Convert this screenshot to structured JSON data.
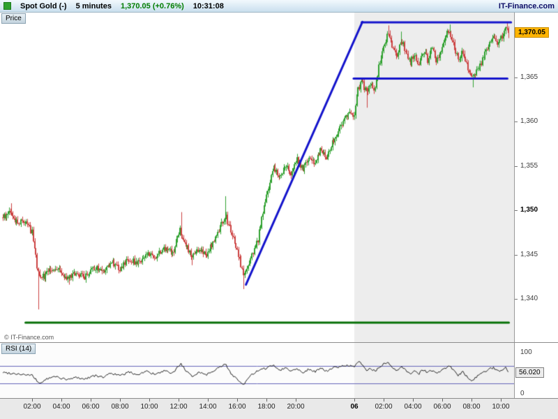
{
  "header": {
    "instrument": "Spot Gold (-)",
    "timeframe": "5 minutes",
    "last_change": "1,370.05 (+0.76%)",
    "time": "10:31:08",
    "brand": "IT-Finance.com"
  },
  "price_panel": {
    "tab_label": "Price",
    "copyright": "© IT-Finance.com",
    "badge_label": "1,370.05"
  },
  "rsi_panel": {
    "tab_label": "RSI (14)",
    "axis_top": "100",
    "axis_bottom": "0",
    "value_label": "56.020"
  },
  "colors": {
    "up": "#2fa12f",
    "down": "#cc4040",
    "trendline": "#1414cc",
    "support": "#067006",
    "badge": "#ffb400",
    "session_shade": "#ededed",
    "rsi_session_shade": "#f0f0f0",
    "rsi_line": "#222222",
    "rsi_levels": "#6666b8",
    "change_positive": "#007c00"
  },
  "chart_data": {
    "type": "candlestick",
    "title": "Spot Gold",
    "bar_interval_minutes": 5,
    "x_unit": "hours from first day 00:00",
    "x_range": [
      0,
      34.5
    ],
    "y_range_price": [
      1335.1,
      1372.35
    ],
    "last_price": 1370.05,
    "session2_start_t": 24,
    "price_ticks": [
      {
        "value": 1365,
        "label": "1,365"
      },
      {
        "value": 1360,
        "label": "1,360"
      },
      {
        "value": 1355,
        "label": "1,355"
      },
      {
        "value": 1350,
        "label": "1,350",
        "bold": true
      },
      {
        "value": 1345,
        "label": "1,345"
      },
      {
        "value": 1340,
        "label": "1,340"
      }
    ],
    "time_ticks": [
      {
        "t": 2,
        "label": "02:00"
      },
      {
        "t": 4,
        "label": "04:00"
      },
      {
        "t": 6,
        "label": "06:00"
      },
      {
        "t": 8,
        "label": "08:00"
      },
      {
        "t": 10,
        "label": "10:00"
      },
      {
        "t": 12,
        "label": "12:00"
      },
      {
        "t": 14,
        "label": "14:00"
      },
      {
        "t": 16,
        "label": "16:00"
      },
      {
        "t": 18,
        "label": "18:00"
      },
      {
        "t": 20,
        "label": "20:00"
      },
      {
        "t": 24,
        "label": "06",
        "bold": true
      },
      {
        "t": 26,
        "label": "02:00"
      },
      {
        "t": 28,
        "label": "04:00"
      },
      {
        "t": 30,
        "label": "06:00"
      },
      {
        "t": 32,
        "label": "08:00"
      },
      {
        "t": 34,
        "label": "10:00"
      }
    ],
    "note": "price_path_anchors are [hours, price] points estimated from the chart; 5-minute candles are interpolated between them",
    "price_path_anchors": [
      [
        0,
        1349.2
      ],
      [
        0.5,
        1349.8
      ],
      [
        1.0,
        1348.5
      ],
      [
        1.5,
        1349.0
      ],
      [
        2.0,
        1347.5
      ],
      [
        2.4,
        1343.0
      ],
      [
        2.8,
        1342.5
      ],
      [
        3.2,
        1343.2
      ],
      [
        3.8,
        1343.5
      ],
      [
        4.4,
        1342.2
      ],
      [
        5.0,
        1343.0
      ],
      [
        5.6,
        1342.4
      ],
      [
        6.2,
        1343.6
      ],
      [
        6.8,
        1343.0
      ],
      [
        7.4,
        1344.2
      ],
      [
        8.0,
        1343.4
      ],
      [
        8.6,
        1344.6
      ],
      [
        9.2,
        1344.0
      ],
      [
        9.8,
        1345.2
      ],
      [
        10.4,
        1344.6
      ],
      [
        11.0,
        1345.8
      ],
      [
        11.6,
        1345.2
      ],
      [
        12.1,
        1347.8
      ],
      [
        12.5,
        1346.0
      ],
      [
        12.9,
        1344.8
      ],
      [
        13.4,
        1345.6
      ],
      [
        13.9,
        1345.0
      ],
      [
        14.4,
        1346.6
      ],
      [
        14.9,
        1348.4
      ],
      [
        15.2,
        1349.4
      ],
      [
        15.6,
        1347.5
      ],
      [
        16.0,
        1345.5
      ],
      [
        16.4,
        1342.6
      ],
      [
        16.9,
        1344.5
      ],
      [
        17.4,
        1346.5
      ],
      [
        17.7,
        1349.5
      ],
      [
        18.1,
        1352.5
      ],
      [
        18.5,
        1354.8
      ],
      [
        18.9,
        1353.5
      ],
      [
        19.3,
        1355.0
      ],
      [
        19.7,
        1354.0
      ],
      [
        20.1,
        1355.8
      ],
      [
        20.5,
        1354.6
      ],
      [
        20.9,
        1356.2
      ],
      [
        21.3,
        1355.4
      ],
      [
        21.7,
        1356.8
      ],
      [
        22.1,
        1356.0
      ],
      [
        22.5,
        1357.6
      ],
      [
        22.9,
        1359.0
      ],
      [
        23.3,
        1360.2
      ],
      [
        23.7,
        1361.0
      ],
      [
        24.0,
        1360.4
      ],
      [
        24.2,
        1363.4
      ],
      [
        24.5,
        1364.6
      ],
      [
        24.8,
        1363.4
      ],
      [
        25.1,
        1364.2
      ],
      [
        25.4,
        1363.6
      ],
      [
        25.7,
        1366.5
      ],
      [
        26.0,
        1368.8
      ],
      [
        26.3,
        1370.0
      ],
      [
        26.6,
        1368.6
      ],
      [
        26.9,
        1367.4
      ],
      [
        27.2,
        1369.2
      ],
      [
        27.5,
        1368.0
      ],
      [
        27.8,
        1366.6
      ],
      [
        28.1,
        1367.8
      ],
      [
        28.4,
        1366.4
      ],
      [
        28.7,
        1368.2
      ],
      [
        29.0,
        1367.0
      ],
      [
        29.3,
        1368.4
      ],
      [
        29.6,
        1366.8
      ],
      [
        29.9,
        1368.0
      ],
      [
        30.2,
        1369.6
      ],
      [
        30.5,
        1370.4
      ],
      [
        30.8,
        1368.6
      ],
      [
        31.1,
        1367.0
      ],
      [
        31.4,
        1368.0
      ],
      [
        31.7,
        1366.2
      ],
      [
        32.0,
        1365.2
      ],
      [
        32.3,
        1365.6
      ],
      [
        32.6,
        1366.4
      ],
      [
        32.9,
        1367.6
      ],
      [
        33.2,
        1368.8
      ],
      [
        33.5,
        1369.6
      ],
      [
        33.8,
        1368.8
      ],
      [
        34.1,
        1369.8
      ],
      [
        34.35,
        1370.6
      ],
      [
        34.5,
        1370.05
      ]
    ],
    "price_spikes_high": [
      [
        0.6,
        1350.8
      ],
      [
        12.15,
        1349.8
      ],
      [
        15.2,
        1351.6
      ],
      [
        26.35,
        1370.9
      ],
      [
        27.2,
        1370.2
      ],
      [
        30.5,
        1371.0
      ],
      [
        34.4,
        1371.2
      ]
    ],
    "price_spikes_low": [
      [
        2.45,
        1338.8
      ],
      [
        4.5,
        1341.6
      ],
      [
        12.9,
        1343.8
      ],
      [
        16.45,
        1341.1
      ],
      [
        24.85,
        1361.6
      ],
      [
        32.05,
        1363.9
      ]
    ],
    "overlays": {
      "trendlines": [
        {
          "from": [
            16.6,
            1341.6
          ],
          "to": [
            24.55,
            1371.3
          ],
          "color": "#1414cc",
          "width": 3
        },
        {
          "from": [
            24.5,
            1371.25
          ],
          "to": [
            34.7,
            1371.25
          ],
          "color": "#1414cc",
          "width": 3
        },
        {
          "from": [
            23.95,
            1364.9
          ],
          "to": [
            34.45,
            1364.9
          ],
          "color": "#1414cc",
          "width": 3
        }
      ],
      "support_line": {
        "from": [
          1.55,
          1337.3
        ],
        "to": [
          34.55,
          1337.3
        ],
        "color": "#067006",
        "width": 3
      }
    },
    "rsi": {
      "period": 14,
      "levels": [
        70,
        30
      ],
      "value": 56.02,
      "anchors": [
        [
          0,
          55
        ],
        [
          1,
          52
        ],
        [
          2,
          48
        ],
        [
          2.5,
          30
        ],
        [
          3,
          40
        ],
        [
          3.6,
          46
        ],
        [
          4.4,
          38
        ],
        [
          5,
          44
        ],
        [
          5.6,
          40
        ],
        [
          6.2,
          48
        ],
        [
          6.8,
          44
        ],
        [
          7.4,
          54
        ],
        [
          8,
          47
        ],
        [
          8.6,
          56
        ],
        [
          9.2,
          50
        ],
        [
          9.8,
          58
        ],
        [
          10.4,
          50
        ],
        [
          11,
          58
        ],
        [
          11.6,
          53
        ],
        [
          12.15,
          76
        ],
        [
          12.5,
          58
        ],
        [
          12.9,
          46
        ],
        [
          13.4,
          56
        ],
        [
          13.9,
          50
        ],
        [
          14.4,
          60
        ],
        [
          14.9,
          68
        ],
        [
          15.2,
          74
        ],
        [
          15.6,
          52
        ],
        [
          16,
          40
        ],
        [
          16.45,
          26
        ],
        [
          16.9,
          48
        ],
        [
          17.4,
          58
        ],
        [
          17.9,
          64
        ],
        [
          18.5,
          72
        ],
        [
          18.9,
          60
        ],
        [
          19.3,
          66
        ],
        [
          19.7,
          58
        ],
        [
          20.1,
          64
        ],
        [
          20.5,
          55
        ],
        [
          20.9,
          63
        ],
        [
          21.3,
          57
        ],
        [
          21.7,
          64
        ],
        [
          22.1,
          58
        ],
        [
          22.5,
          65
        ],
        [
          22.9,
          68
        ],
        [
          23.3,
          70
        ],
        [
          23.7,
          71
        ],
        [
          24.0,
          66
        ],
        [
          24.3,
          82
        ],
        [
          24.8,
          60
        ],
        [
          25.1,
          65
        ],
        [
          25.4,
          58
        ],
        [
          25.7,
          66
        ],
        [
          26.0,
          74
        ],
        [
          26.3,
          78
        ],
        [
          26.6,
          64
        ],
        [
          26.9,
          58
        ],
        [
          27.2,
          68
        ],
        [
          27.5,
          60
        ],
        [
          27.8,
          52
        ],
        [
          28.1,
          60
        ],
        [
          28.4,
          52
        ],
        [
          28.7,
          62
        ],
        [
          29,
          55
        ],
        [
          29.3,
          61
        ],
        [
          29.6,
          52
        ],
        [
          29.9,
          58
        ],
        [
          30.2,
          65
        ],
        [
          30.5,
          70
        ],
        [
          30.8,
          58
        ],
        [
          31.1,
          48
        ],
        [
          31.4,
          56
        ],
        [
          31.7,
          46
        ],
        [
          32,
          36
        ],
        [
          32.3,
          44
        ],
        [
          32.6,
          50
        ],
        [
          32.9,
          57
        ],
        [
          33.2,
          62
        ],
        [
          33.5,
          66
        ],
        [
          33.8,
          58
        ],
        [
          34.1,
          62
        ],
        [
          34.35,
          68
        ],
        [
          34.5,
          56.02
        ]
      ]
    }
  }
}
